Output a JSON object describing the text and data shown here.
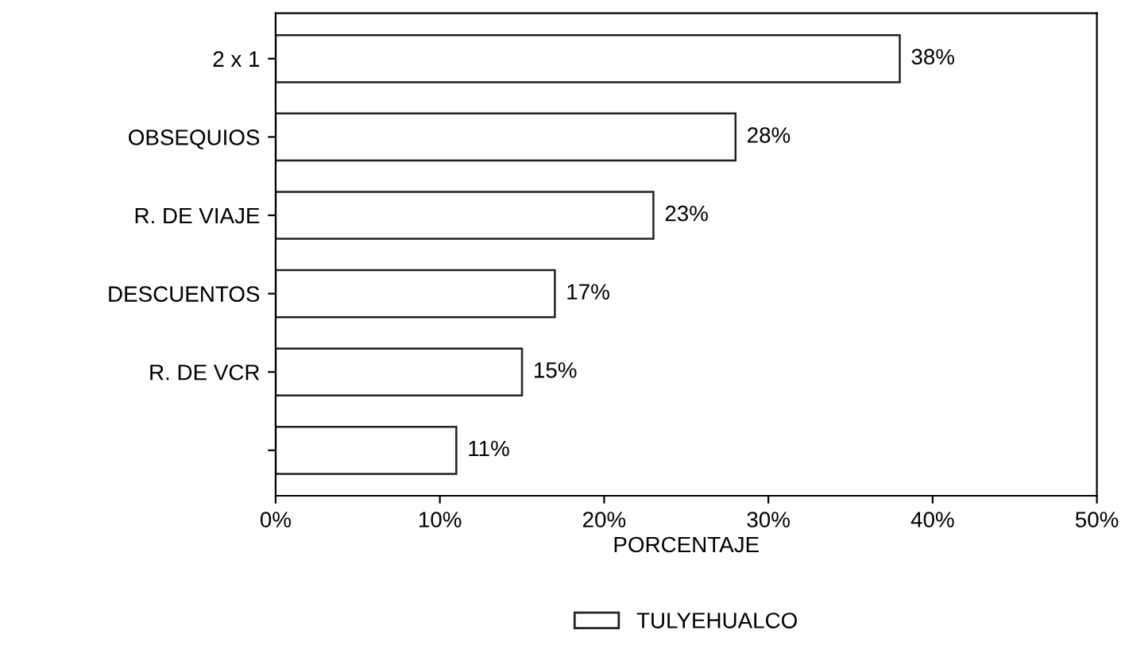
{
  "chart_data": {
    "type": "bar",
    "orientation": "horizontal",
    "xlabel": "PORCENTAJE",
    "categories": [
      "2 x 1",
      "OBSEQUIOS",
      "R. DE VIAJE",
      "DESCUENTOS",
      "R. DE VCR",
      null
    ],
    "series": [
      {
        "name": "TULYEHUALCO",
        "color": "#ffffff",
        "values": [
          38,
          28,
          23,
          17,
          15,
          11
        ],
        "value_labels": [
          "38%",
          "28%",
          "23%",
          "17%",
          "15%",
          "11%"
        ]
      }
    ],
    "xlim": [
      0,
      50
    ],
    "xticks": [
      {
        "value": 0,
        "label": "0%"
      },
      {
        "value": 10,
        "label": "10%"
      },
      {
        "value": 20,
        "label": "20%"
      },
      {
        "value": 30,
        "label": "30%"
      },
      {
        "value": 40,
        "label": "40%"
      },
      {
        "value": 50,
        "label": "50%"
      }
    ],
    "grid": false,
    "legend": "bottom"
  }
}
